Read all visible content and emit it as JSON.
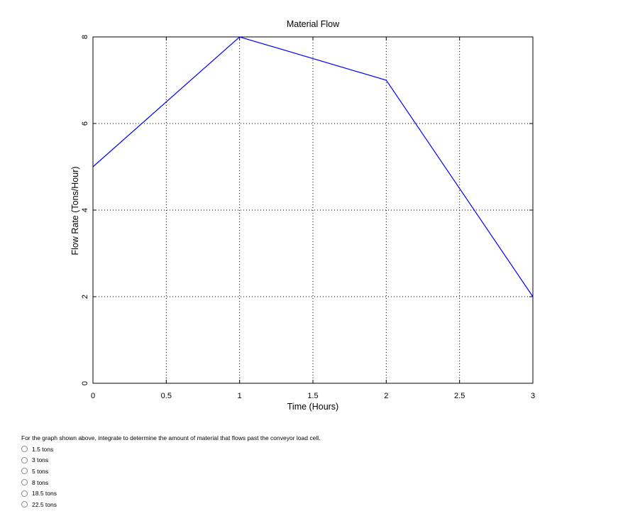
{
  "chart_data": {
    "type": "line",
    "title": "Material Flow",
    "xlabel": "Time (Hours)",
    "ylabel": "Flow Rate (Tons/Hour)",
    "xlim": [
      0,
      3
    ],
    "ylim": [
      0,
      8
    ],
    "xticks": [
      0,
      0.5,
      1,
      1.5,
      2,
      2.5,
      3
    ],
    "xtick_labels": [
      "0",
      "0.5",
      "1",
      "1.5",
      "2",
      "2.5",
      "3"
    ],
    "yticks": [
      0,
      2,
      4,
      6,
      8
    ],
    "ytick_labels": [
      "0",
      "2",
      "4",
      "6",
      "8"
    ],
    "grid": true,
    "grid_style": "dotted",
    "line_color": "#0000ff",
    "series": [
      {
        "x": [
          0,
          1,
          2,
          3
        ],
        "y": [
          5,
          8,
          7,
          2
        ]
      }
    ]
  },
  "question": {
    "text": "For the graph shown above, integrate to determine the amount of material that flows past the conveyor load cell.",
    "options": [
      {
        "label": "1.5 tons"
      },
      {
        "label": "3 tons"
      },
      {
        "label": "5 tons"
      },
      {
        "label": "8 tons"
      },
      {
        "label": "18.5 tons"
      },
      {
        "label": "22.5 tons"
      }
    ]
  }
}
